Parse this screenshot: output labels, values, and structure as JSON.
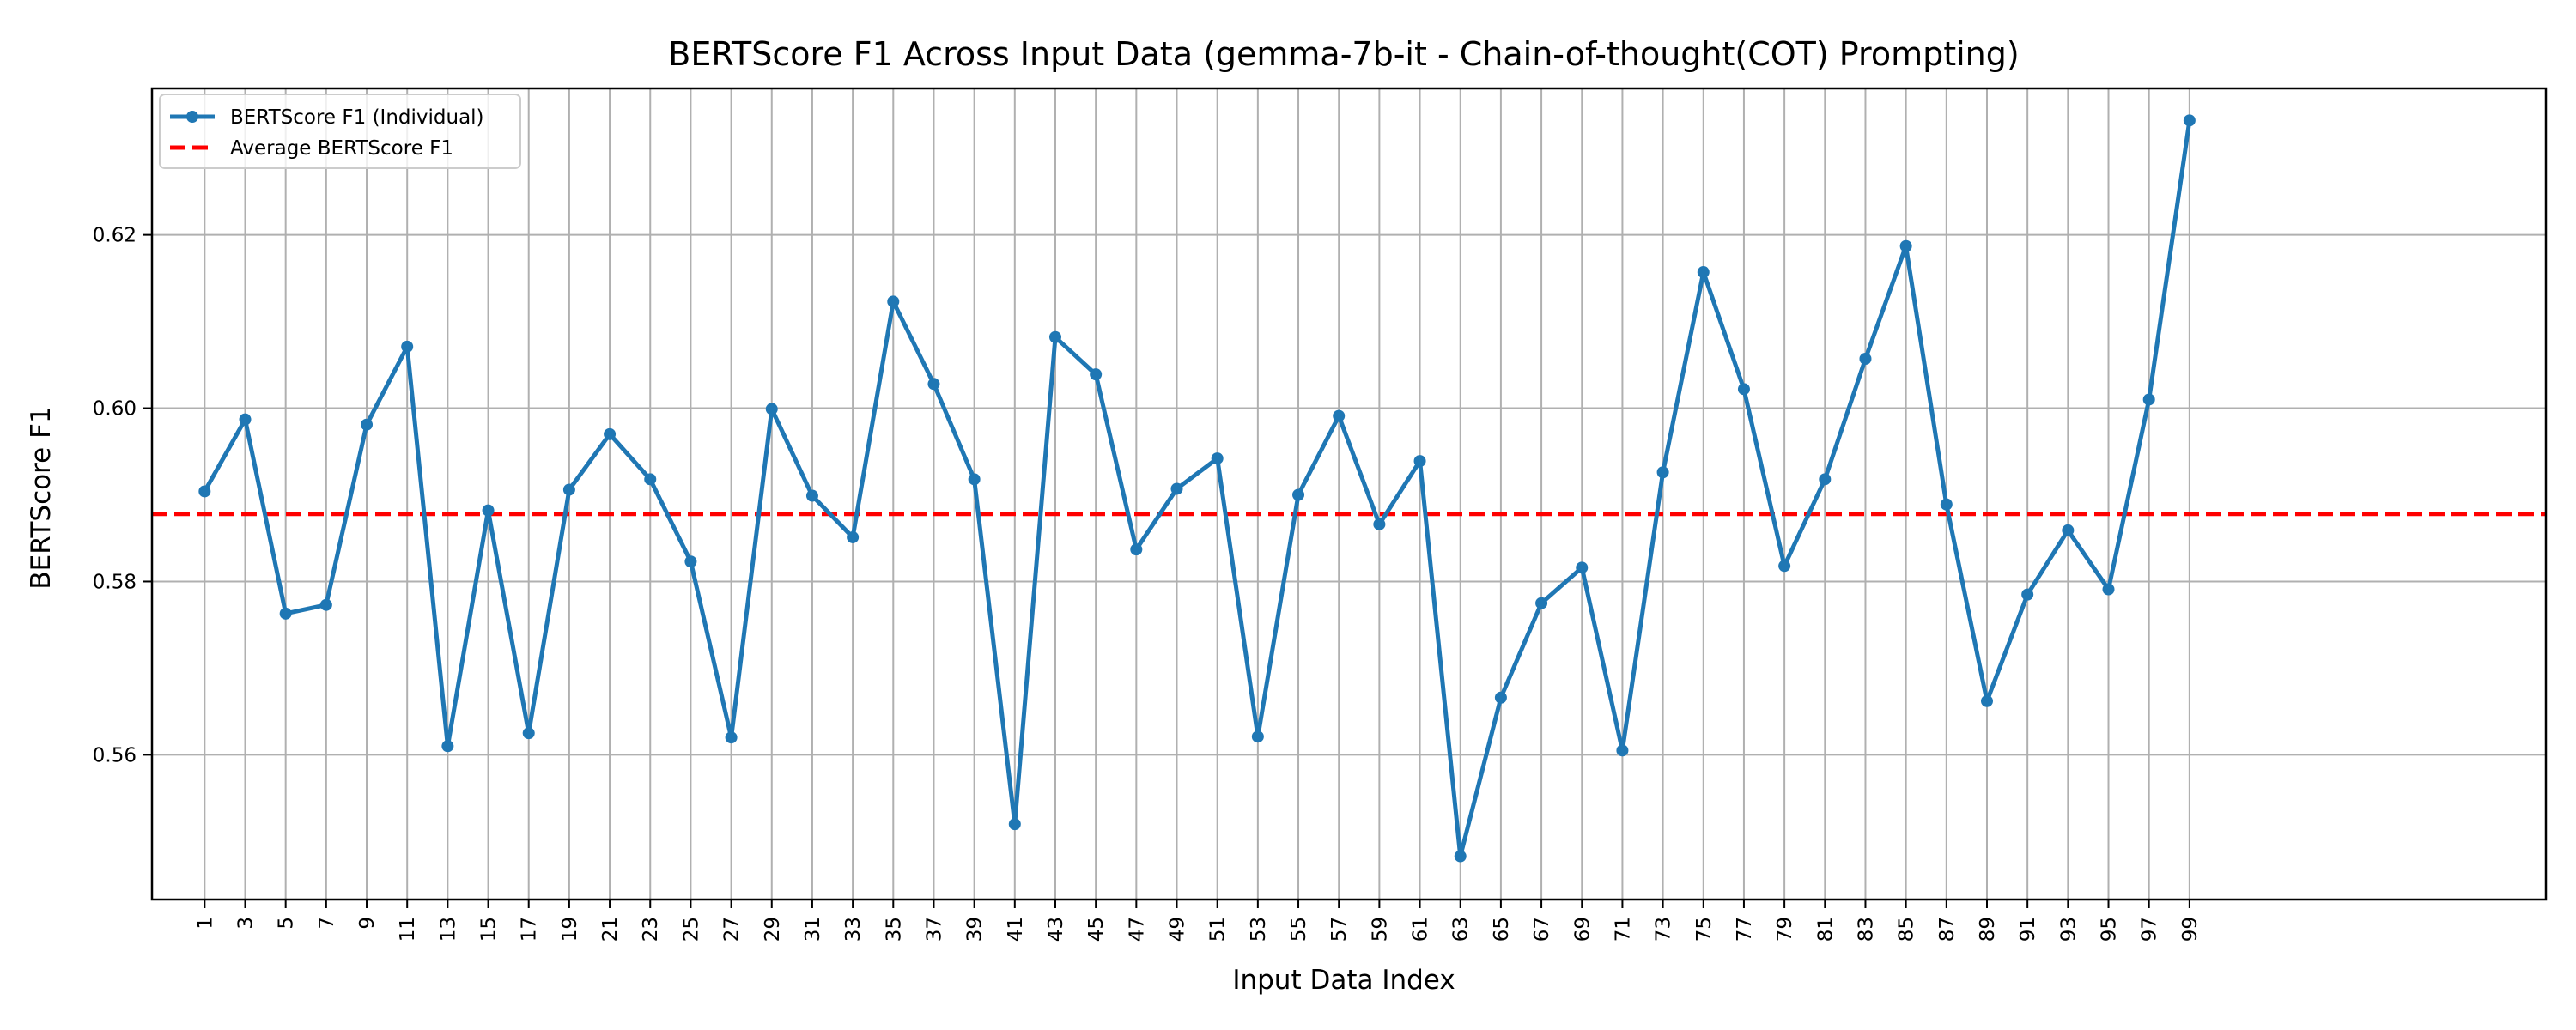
{
  "chart_data": {
    "type": "line",
    "title": "BERTScore F1 Across Input Data (gemma-7b-it - Chain-of-thought(COT) Prompting)",
    "xlabel": "Input Data Index",
    "ylabel": "BERTScore F1",
    "xlim": [
      -1.6,
      116.6
    ],
    "ylim": [
      0.5433,
      0.6369
    ],
    "yticks": [
      0.56,
      0.58,
      0.6,
      0.62
    ],
    "grid": true,
    "legend_position": "top-left",
    "series": [
      {
        "name": "BERTScore F1 (Individual)",
        "color": "#1f77b4",
        "marker": "circle",
        "x": [
          1,
          3,
          5,
          7,
          9,
          11,
          13,
          15,
          17,
          19,
          21,
          23,
          25,
          27,
          29,
          31,
          33,
          35,
          37,
          39,
          41,
          43,
          45,
          47,
          49,
          51,
          53,
          55,
          57,
          59,
          61,
          63,
          65,
          67,
          69,
          71,
          73,
          75,
          77,
          79,
          81,
          83,
          85,
          87,
          89,
          91,
          93,
          95,
          97,
          99
        ],
        "values": [
          0.5904,
          0.5987,
          0.5763,
          0.5773,
          0.5981,
          0.6071,
          0.561,
          0.5882,
          0.5625,
          0.5906,
          0.597,
          0.5918,
          0.5823,
          0.562,
          0.5999,
          0.5899,
          0.5851,
          0.6123,
          0.6028,
          0.5918,
          0.552,
          0.6082,
          0.6039,
          0.5837,
          0.5907,
          0.5942,
          0.5621,
          0.59,
          0.5991,
          0.5866,
          0.5939,
          0.5483,
          0.5666,
          0.5775,
          0.5816,
          0.5605,
          0.5926,
          0.6157,
          0.6022,
          0.5818,
          0.5918,
          0.6057,
          0.6187,
          0.5889,
          0.5662,
          0.5785,
          0.5859,
          0.5791,
          0.601,
          0.6332
        ]
      },
      {
        "name": "Average BERTScore F1",
        "color": "#ff0000",
        "style": "dashed",
        "value": 0.5878
      }
    ]
  }
}
